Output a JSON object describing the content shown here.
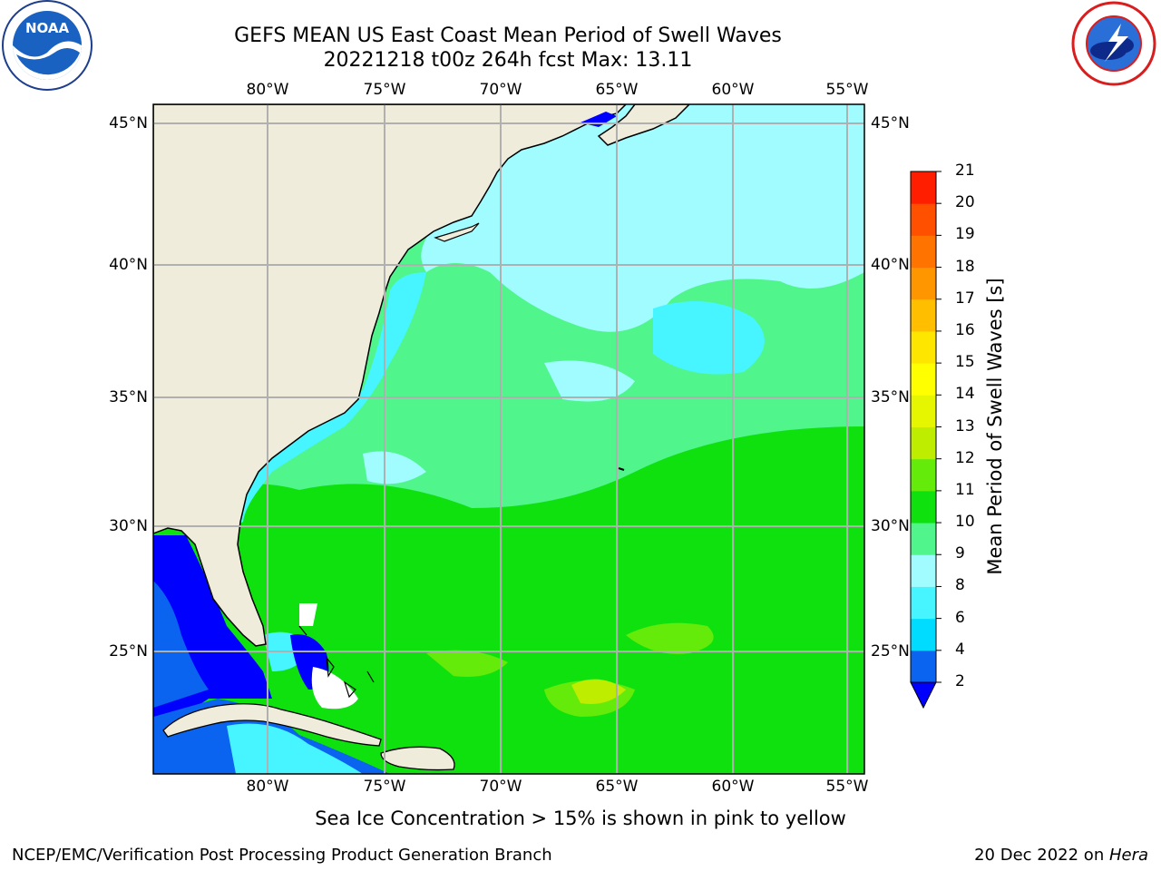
{
  "header": {
    "title_line1": "GEFS MEAN US East Coast Mean Period of Swell Waves",
    "title_line2": "20221218 t00z 264h fcst   Max: 13.11"
  },
  "logos": {
    "noaa": {
      "text": "NOAA",
      "ring_text": "NATIONAL OCEANIC AND ATMOSPHERIC ADMINISTRATION · U.S. DEPARTMENT OF COMMERCE"
    },
    "nws": {
      "ring_text": "NATIONAL WEATHER SERVICE"
    }
  },
  "map": {
    "lon_labels": [
      "80°W",
      "75°W",
      "70°W",
      "65°W",
      "60°W",
      "55°W"
    ],
    "lat_labels": [
      "45°N",
      "40°N",
      "35°N",
      "30°N",
      "25°N"
    ],
    "colors": {
      "land": "#efecdc",
      "grid": "#b0b0b0"
    }
  },
  "colorbar": {
    "label": "Mean Period of Swell Waves [s]",
    "ticks": [
      "2",
      "4",
      "6",
      "8",
      "9",
      "10",
      "11",
      "12",
      "13",
      "14",
      "15",
      "16",
      "17",
      "18",
      "19",
      "20",
      "21"
    ],
    "colors": [
      "#0a64f0",
      "#00dcff",
      "#46f5ff",
      "#a0fcff",
      "#50f58c",
      "#0fe10f",
      "#64eb0a",
      "#beed00",
      "#e6f500",
      "#ffff00",
      "#ffe600",
      "#ffbe00",
      "#ff9600",
      "#ff7300",
      "#ff5000",
      "#ff1e00"
    ],
    "under_color": "#0000ff"
  },
  "footer": {
    "note": "Sea Ice Concentration > 15% is shown in pink to yellow",
    "credit": "NCEP/EMC/Verification Post Processing Product Generation Branch",
    "date": "20 Dec 2022 on ",
    "machine": "Hera"
  }
}
